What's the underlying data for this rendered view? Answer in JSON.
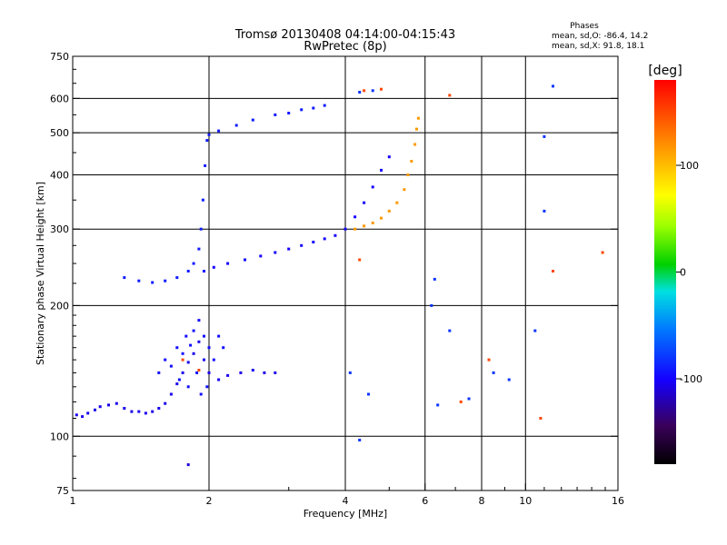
{
  "chart_data": {
    "type": "scatter",
    "title_line1": "Tromsø 20130408 04:14:00-04:15:43",
    "title_line2": "RwPretec (8p)",
    "xlabel": "Frequency [MHz]",
    "ylabel": "Stationary phase Virtual Height [km]",
    "x_scale": "log",
    "y_scale": "log",
    "xlim": [
      1,
      16
    ],
    "ylim": [
      75,
      750
    ],
    "x_ticks": [
      1,
      2,
      4,
      6,
      8,
      10,
      16
    ],
    "x_tick_labels": [
      "1",
      "2",
      "4",
      "6",
      "8",
      "10",
      "16"
    ],
    "x_gridlines": [
      2,
      4,
      6,
      8,
      10
    ],
    "y_ticks": [
      75,
      100,
      200,
      300,
      400,
      500,
      600,
      750
    ],
    "y_tick_labels": [
      "75",
      "100",
      "200",
      "300",
      "400",
      "500",
      "600",
      "750"
    ],
    "y_gridlines": [
      100,
      200,
      300,
      400,
      500,
      600
    ],
    "grid": true,
    "stats": {
      "heading": "Phases",
      "line_o": "mean, sd,O: -86.4, 14.2",
      "line_x": "mean, sd,X:  91.8, 18.1"
    },
    "colorbar": {
      "label": "[deg]",
      "range": [
        -180,
        180
      ],
      "tick_values": [
        100,
        0,
        -100
      ],
      "tick_labels": [
        "100",
        "0",
        "-100"
      ]
    },
    "series": [
      {
        "trace": "low-layer",
        "phase_deg": -105,
        "points": [
          [
            1.02,
            112
          ],
          [
            1.05,
            111
          ],
          [
            1.08,
            113
          ],
          [
            1.12,
            115
          ],
          [
            1.15,
            117
          ],
          [
            1.2,
            118
          ],
          [
            1.25,
            119
          ],
          [
            1.3,
            116
          ],
          [
            1.35,
            114
          ],
          [
            1.4,
            114
          ],
          [
            1.45,
            113
          ],
          [
            1.5,
            114
          ],
          [
            1.55,
            116
          ],
          [
            1.6,
            119
          ],
          [
            1.65,
            125
          ],
          [
            1.7,
            132
          ],
          [
            1.75,
            140
          ],
          [
            1.8,
            148
          ],
          [
            1.85,
            155
          ],
          [
            1.9,
            165
          ],
          [
            1.95,
            150
          ],
          [
            2.0,
            140
          ],
          [
            2.1,
            135
          ],
          [
            2.2,
            138
          ],
          [
            2.35,
            140
          ],
          [
            2.5,
            142
          ],
          [
            2.65,
            140
          ],
          [
            2.8,
            140
          ]
        ]
      },
      {
        "trace": "low-layer-cluster",
        "phase_deg": -95,
        "points": [
          [
            1.55,
            140
          ],
          [
            1.6,
            150
          ],
          [
            1.65,
            145
          ],
          [
            1.7,
            160
          ],
          [
            1.72,
            135
          ],
          [
            1.75,
            155
          ],
          [
            1.78,
            170
          ],
          [
            1.8,
            130
          ],
          [
            1.82,
            162
          ],
          [
            1.85,
            175
          ],
          [
            1.88,
            140
          ],
          [
            1.9,
            185
          ],
          [
            1.92,
            125
          ],
          [
            1.95,
            170
          ],
          [
            1.98,
            130
          ],
          [
            2.0,
            160
          ],
          [
            2.05,
            150
          ],
          [
            2.1,
            170
          ],
          [
            2.15,
            160
          ]
        ]
      },
      {
        "trace": "F-layer-o-mode",
        "phase_deg": -90,
        "points": [
          [
            1.3,
            232
          ],
          [
            1.4,
            228
          ],
          [
            1.5,
            226
          ],
          [
            1.6,
            228
          ],
          [
            1.7,
            232
          ],
          [
            1.8,
            240
          ],
          [
            1.85,
            250
          ],
          [
            1.9,
            270
          ],
          [
            1.92,
            300
          ],
          [
            1.94,
            350
          ],
          [
            1.96,
            420
          ],
          [
            1.98,
            480
          ],
          [
            2.0,
            495
          ],
          [
            2.1,
            505
          ],
          [
            2.3,
            520
          ],
          [
            2.5,
            535
          ],
          [
            2.8,
            550
          ],
          [
            3.0,
            555
          ],
          [
            3.2,
            565
          ],
          [
            3.4,
            570
          ],
          [
            3.6,
            578
          ]
        ]
      },
      {
        "trace": "F-layer-o-mode-lower",
        "phase_deg": -100,
        "points": [
          [
            1.95,
            240
          ],
          [
            2.05,
            245
          ],
          [
            2.2,
            250
          ],
          [
            2.4,
            255
          ],
          [
            2.6,
            260
          ],
          [
            2.8,
            265
          ],
          [
            3.0,
            270
          ],
          [
            3.2,
            275
          ],
          [
            3.4,
            280
          ],
          [
            3.6,
            285
          ],
          [
            3.8,
            290
          ],
          [
            4.0,
            300
          ],
          [
            4.2,
            320
          ],
          [
            4.4,
            345
          ],
          [
            4.6,
            375
          ],
          [
            4.8,
            410
          ],
          [
            5.0,
            440
          ]
        ]
      },
      {
        "trace": "F-layer-x-mode",
        "phase_deg": 115,
        "points": [
          [
            4.2,
            300
          ],
          [
            4.4,
            305
          ],
          [
            4.6,
            310
          ],
          [
            4.8,
            318
          ],
          [
            5.0,
            330
          ],
          [
            5.2,
            345
          ],
          [
            5.4,
            370
          ],
          [
            5.5,
            400
          ],
          [
            5.6,
            430
          ],
          [
            5.7,
            470
          ],
          [
            5.75,
            510
          ],
          [
            5.8,
            540
          ]
        ]
      },
      {
        "trace": "scattered",
        "phase_deg": -80,
        "points": [
          [
            4.1,
            140
          ],
          [
            4.3,
            98
          ],
          [
            4.5,
            125
          ],
          [
            6.2,
            200
          ],
          [
            6.4,
            118
          ],
          [
            6.8,
            175
          ],
          [
            7.5,
            122
          ],
          [
            8.5,
            140
          ],
          [
            9.2,
            135
          ],
          [
            10.5,
            175
          ],
          [
            11.0,
            490
          ],
          [
            11.0,
            330
          ],
          [
            11.5,
            640
          ],
          [
            4.3,
            620
          ],
          [
            4.6,
            625
          ],
          [
            6.3,
            230
          ]
        ]
      },
      {
        "trace": "scattered-warm",
        "phase_deg": 150,
        "points": [
          [
            4.4,
            625
          ],
          [
            4.8,
            630
          ],
          [
            4.3,
            255
          ],
          [
            6.8,
            610
          ],
          [
            7.2,
            120
          ],
          [
            10.8,
            110
          ],
          [
            11.5,
            240
          ],
          [
            14.8,
            265
          ],
          [
            8.3,
            150
          ],
          [
            1.75,
            150
          ],
          [
            1.9,
            142
          ]
        ]
      },
      {
        "trace": "isolated-low",
        "phase_deg": -110,
        "points": [
          [
            1.8,
            86
          ]
        ]
      }
    ]
  }
}
